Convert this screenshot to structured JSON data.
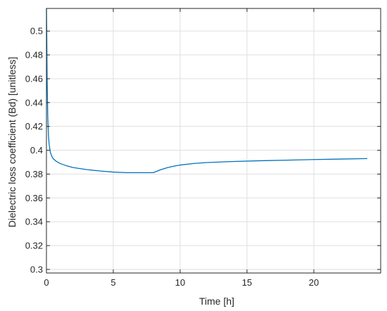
{
  "chart_data": {
    "type": "line",
    "title": "",
    "xlabel": "Time [h]",
    "ylabel": "Dielectric loss coefficient (Bd) [unitless]",
    "xlim": [
      0,
      25
    ],
    "ylim": [
      0.297,
      0.519
    ],
    "xticks": [
      0,
      5,
      10,
      15,
      20
    ],
    "xtick_labels": [
      "0",
      "5",
      "10",
      "15",
      "20"
    ],
    "yticks": [
      0.3,
      0.32,
      0.34,
      0.36,
      0.38,
      0.4,
      0.42,
      0.44,
      0.46,
      0.48,
      0.5
    ],
    "ytick_labels": [
      "0.3",
      "0.32",
      "0.34",
      "0.36",
      "0.38",
      "0.4",
      "0.42",
      "0.44",
      "0.46",
      "0.48",
      "0.5"
    ],
    "grid": true,
    "series": [
      {
        "color": "#0072BD",
        "x": [
          0,
          0.02,
          0.05,
          0.1,
          0.15,
          0.2,
          0.3,
          0.4,
          0.5,
          0.7,
          1.0,
          1.5,
          2.0,
          3.0,
          4.0,
          5.0,
          6.0,
          7.0,
          8.0,
          8.5,
          9.0,
          9.5,
          10.0,
          11.0,
          12.0,
          14.0,
          16.0,
          18.0,
          20.0,
          22.0,
          24.0
        ],
        "y": [
          0.519,
          0.5,
          0.46,
          0.428,
          0.413,
          0.405,
          0.398,
          0.395,
          0.393,
          0.391,
          0.389,
          0.387,
          0.3855,
          0.3838,
          0.3826,
          0.3817,
          0.3812,
          0.3812,
          0.3812,
          0.3835,
          0.3853,
          0.3866,
          0.3876,
          0.3889,
          0.3897,
          0.3906,
          0.3912,
          0.3917,
          0.3922,
          0.3926,
          0.393
        ]
      }
    ]
  }
}
